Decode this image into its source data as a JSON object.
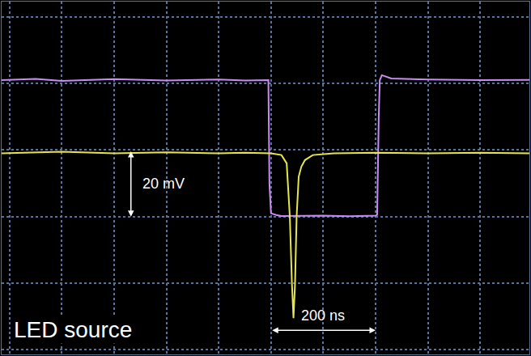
{
  "chart_data": {
    "type": "line",
    "xlim": [
      -515,
      494
    ],
    "ylim": [
      -41.4,
      64.6
    ],
    "xticks": [
      -500,
      -400,
      -300,
      -200,
      -100,
      0,
      100,
      200,
      300,
      400
    ],
    "yticks": [
      -40,
      -20,
      0,
      20,
      40,
      60
    ],
    "grid": true,
    "tick_labels": false,
    "series": [
      {
        "color": "#c98cf0",
        "x": [
          -515,
          -450,
          -400,
          -300,
          -200,
          -100,
          -50,
          -10,
          -5,
          -3,
          0,
          10,
          20,
          100,
          150,
          200,
          203,
          206,
          208,
          212,
          230,
          300,
          400,
          494
        ],
        "values": [
          41,
          41.4,
          40.8,
          41.3,
          40.9,
          41.2,
          40.9,
          41,
          41,
          10,
          1,
          0.5,
          0.2,
          0.3,
          0.1,
          0.3,
          0.5,
          30,
          41,
          42.5,
          41.5,
          41.2,
          41,
          41.1
        ]
      },
      {
        "color": "#e6e64a",
        "x": [
          -515,
          -400,
          -300,
          -200,
          -100,
          -50,
          0,
          20,
          30,
          36,
          40,
          43,
          46,
          49,
          53,
          58,
          65,
          80,
          120,
          200,
          300,
          400,
          494
        ],
        "values": [
          19,
          19.5,
          19,
          19.3,
          19,
          19.2,
          19,
          18.5,
          16,
          0,
          -20,
          -30.5,
          -20,
          0,
          12,
          15,
          17,
          18.5,
          19,
          19.2,
          19,
          19.2,
          19
        ]
      }
    ],
    "scale_bars": [
      {
        "label": "20 mV",
        "axis": "y",
        "start": 0,
        "length": 20
      },
      {
        "label": "200 ns",
        "axis": "x",
        "start": 0,
        "length": 200
      }
    ],
    "annotations": [
      {
        "text": "LED source"
      }
    ]
  }
}
